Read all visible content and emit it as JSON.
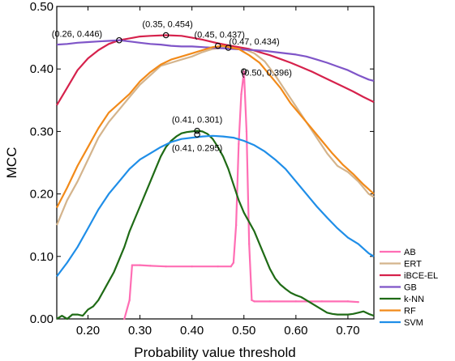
{
  "chart_data": {
    "type": "line",
    "xlabel": "Probability value threshold",
    "ylabel": "MCC",
    "xlim": [
      0.14,
      0.75
    ],
    "ylim": [
      0.0,
      0.5
    ],
    "xticks": [
      "0.20",
      "0.30",
      "0.40",
      "0.50",
      "0.60",
      "0.70"
    ],
    "yticks": [
      "0.00",
      "0.10",
      "0.20",
      "0.30",
      "0.40",
      "0.50"
    ],
    "legend_position": "bottom-right",
    "series": [
      {
        "name": "AB",
        "color": "#ff6eb4",
        "points": [
          [
            0.27,
            0.0
          ],
          [
            0.28,
            0.03
          ],
          [
            0.285,
            0.086
          ],
          [
            0.3,
            0.086
          ],
          [
            0.32,
            0.085
          ],
          [
            0.35,
            0.084
          ],
          [
            0.4,
            0.084
          ],
          [
            0.45,
            0.084
          ],
          [
            0.475,
            0.084
          ],
          [
            0.48,
            0.09
          ],
          [
            0.485,
            0.15
          ],
          [
            0.49,
            0.28
          ],
          [
            0.495,
            0.36
          ],
          [
            0.5,
            0.396
          ],
          [
            0.505,
            0.3
          ],
          [
            0.51,
            0.12
          ],
          [
            0.515,
            0.03
          ],
          [
            0.52,
            0.028
          ],
          [
            0.55,
            0.028
          ],
          [
            0.6,
            0.028
          ],
          [
            0.65,
            0.028
          ],
          [
            0.7,
            0.028
          ],
          [
            0.72,
            0.027
          ]
        ]
      },
      {
        "name": "ERT",
        "color": "#d4b48c",
        "points": [
          [
            0.14,
            0.15
          ],
          [
            0.16,
            0.19
          ],
          [
            0.18,
            0.22
          ],
          [
            0.2,
            0.255
          ],
          [
            0.22,
            0.29
          ],
          [
            0.24,
            0.315
          ],
          [
            0.26,
            0.335
          ],
          [
            0.28,
            0.355
          ],
          [
            0.3,
            0.375
          ],
          [
            0.32,
            0.39
          ],
          [
            0.34,
            0.405
          ],
          [
            0.36,
            0.41
          ],
          [
            0.38,
            0.415
          ],
          [
            0.4,
            0.42
          ],
          [
            0.42,
            0.427
          ],
          [
            0.44,
            0.432
          ],
          [
            0.46,
            0.434
          ],
          [
            0.48,
            0.435
          ],
          [
            0.5,
            0.432
          ],
          [
            0.52,
            0.425
          ],
          [
            0.54,
            0.412
          ],
          [
            0.56,
            0.39
          ],
          [
            0.58,
            0.365
          ],
          [
            0.6,
            0.34
          ],
          [
            0.62,
            0.315
          ],
          [
            0.64,
            0.29
          ],
          [
            0.66,
            0.265
          ],
          [
            0.68,
            0.245
          ],
          [
            0.7,
            0.235
          ],
          [
            0.72,
            0.22
          ],
          [
            0.74,
            0.2
          ],
          [
            0.75,
            0.195
          ]
        ]
      },
      {
        "name": "iBCE-EL",
        "color": "#d6224c",
        "points": [
          [
            0.14,
            0.342
          ],
          [
            0.16,
            0.37
          ],
          [
            0.18,
            0.398
          ],
          [
            0.2,
            0.417
          ],
          [
            0.22,
            0.43
          ],
          [
            0.24,
            0.44
          ],
          [
            0.26,
            0.446
          ],
          [
            0.28,
            0.449
          ],
          [
            0.3,
            0.452
          ],
          [
            0.32,
            0.453
          ],
          [
            0.35,
            0.454
          ],
          [
            0.38,
            0.453
          ],
          [
            0.4,
            0.45
          ],
          [
            0.42,
            0.447
          ],
          [
            0.45,
            0.441
          ],
          [
            0.47,
            0.438
          ],
          [
            0.49,
            0.435
          ],
          [
            0.51,
            0.432
          ],
          [
            0.53,
            0.427
          ],
          [
            0.55,
            0.422
          ],
          [
            0.57,
            0.416
          ],
          [
            0.59,
            0.41
          ],
          [
            0.61,
            0.403
          ],
          [
            0.63,
            0.396
          ],
          [
            0.65,
            0.388
          ],
          [
            0.67,
            0.38
          ],
          [
            0.69,
            0.372
          ],
          [
            0.71,
            0.364
          ],
          [
            0.73,
            0.355
          ],
          [
            0.75,
            0.347
          ]
        ]
      },
      {
        "name": "GB",
        "color": "#7f55c8",
        "points": [
          [
            0.14,
            0.439
          ],
          [
            0.16,
            0.44
          ],
          [
            0.18,
            0.442
          ],
          [
            0.2,
            0.443
          ],
          [
            0.22,
            0.444
          ],
          [
            0.24,
            0.445
          ],
          [
            0.26,
            0.446
          ],
          [
            0.28,
            0.444
          ],
          [
            0.3,
            0.442
          ],
          [
            0.32,
            0.44
          ],
          [
            0.34,
            0.439
          ],
          [
            0.36,
            0.437
          ],
          [
            0.38,
            0.436
          ],
          [
            0.4,
            0.436
          ],
          [
            0.42,
            0.435
          ],
          [
            0.44,
            0.434
          ],
          [
            0.46,
            0.433
          ],
          [
            0.48,
            0.432
          ],
          [
            0.5,
            0.431
          ],
          [
            0.52,
            0.43
          ],
          [
            0.54,
            0.429
          ],
          [
            0.56,
            0.427
          ],
          [
            0.58,
            0.425
          ],
          [
            0.6,
            0.423
          ],
          [
            0.62,
            0.42
          ],
          [
            0.64,
            0.415
          ],
          [
            0.66,
            0.41
          ],
          [
            0.68,
            0.404
          ],
          [
            0.7,
            0.398
          ],
          [
            0.72,
            0.39
          ],
          [
            0.74,
            0.383
          ],
          [
            0.75,
            0.381
          ]
        ]
      },
      {
        "name": "k-NN",
        "color": "#1f6b16",
        "points": [
          [
            0.14,
            0.0
          ],
          [
            0.15,
            0.005
          ],
          [
            0.16,
            0.0
          ],
          [
            0.17,
            0.007
          ],
          [
            0.18,
            0.007
          ],
          [
            0.19,
            0.005
          ],
          [
            0.2,
            0.015
          ],
          [
            0.21,
            0.02
          ],
          [
            0.22,
            0.03
          ],
          [
            0.23,
            0.045
          ],
          [
            0.24,
            0.06
          ],
          [
            0.25,
            0.075
          ],
          [
            0.26,
            0.095
          ],
          [
            0.27,
            0.115
          ],
          [
            0.28,
            0.14
          ],
          [
            0.29,
            0.16
          ],
          [
            0.3,
            0.18
          ],
          [
            0.31,
            0.2
          ],
          [
            0.32,
            0.22
          ],
          [
            0.33,
            0.24
          ],
          [
            0.34,
            0.26
          ],
          [
            0.35,
            0.275
          ],
          [
            0.36,
            0.285
          ],
          [
            0.37,
            0.292
          ],
          [
            0.38,
            0.297
          ],
          [
            0.39,
            0.299
          ],
          [
            0.4,
            0.3
          ],
          [
            0.41,
            0.301
          ],
          [
            0.42,
            0.3
          ],
          [
            0.43,
            0.296
          ],
          [
            0.44,
            0.288
          ],
          [
            0.45,
            0.275
          ],
          [
            0.46,
            0.26
          ],
          [
            0.47,
            0.24
          ],
          [
            0.48,
            0.215
          ],
          [
            0.49,
            0.19
          ],
          [
            0.5,
            0.17
          ],
          [
            0.51,
            0.155
          ],
          [
            0.52,
            0.14
          ],
          [
            0.53,
            0.12
          ],
          [
            0.54,
            0.1
          ],
          [
            0.55,
            0.08
          ],
          [
            0.56,
            0.065
          ],
          [
            0.57,
            0.055
          ],
          [
            0.58,
            0.048
          ],
          [
            0.59,
            0.042
          ],
          [
            0.6,
            0.038
          ],
          [
            0.61,
            0.035
          ],
          [
            0.62,
            0.03
          ],
          [
            0.63,
            0.025
          ],
          [
            0.64,
            0.02
          ],
          [
            0.65,
            0.015
          ],
          [
            0.66,
            0.01
          ],
          [
            0.67,
            0.008
          ],
          [
            0.68,
            0.007
          ],
          [
            0.69,
            0.007
          ],
          [
            0.7,
            0.007
          ],
          [
            0.71,
            0.008
          ],
          [
            0.72,
            0.01
          ],
          [
            0.73,
            0.012
          ],
          [
            0.74,
            0.008
          ],
          [
            0.75,
            0.005
          ]
        ]
      },
      {
        "name": "RF",
        "color": "#f28a19",
        "points": [
          [
            0.14,
            0.178
          ],
          [
            0.16,
            0.21
          ],
          [
            0.18,
            0.245
          ],
          [
            0.2,
            0.275
          ],
          [
            0.22,
            0.305
          ],
          [
            0.24,
            0.33
          ],
          [
            0.26,
            0.345
          ],
          [
            0.28,
            0.36
          ],
          [
            0.3,
            0.38
          ],
          [
            0.32,
            0.395
          ],
          [
            0.34,
            0.407
          ],
          [
            0.36,
            0.415
          ],
          [
            0.38,
            0.42
          ],
          [
            0.4,
            0.425
          ],
          [
            0.42,
            0.43
          ],
          [
            0.44,
            0.435
          ],
          [
            0.46,
            0.437
          ],
          [
            0.47,
            0.435
          ],
          [
            0.49,
            0.432
          ],
          [
            0.51,
            0.422
          ],
          [
            0.53,
            0.41
          ],
          [
            0.55,
            0.39
          ],
          [
            0.57,
            0.37
          ],
          [
            0.59,
            0.345
          ],
          [
            0.61,
            0.325
          ],
          [
            0.63,
            0.305
          ],
          [
            0.65,
            0.285
          ],
          [
            0.67,
            0.265
          ],
          [
            0.69,
            0.247
          ],
          [
            0.71,
            0.232
          ],
          [
            0.73,
            0.215
          ],
          [
            0.75,
            0.2
          ]
        ]
      },
      {
        "name": "SVM",
        "color": "#1f8ee8",
        "points": [
          [
            0.14,
            0.068
          ],
          [
            0.16,
            0.09
          ],
          [
            0.18,
            0.115
          ],
          [
            0.2,
            0.145
          ],
          [
            0.22,
            0.175
          ],
          [
            0.24,
            0.2
          ],
          [
            0.26,
            0.22
          ],
          [
            0.28,
            0.24
          ],
          [
            0.3,
            0.255
          ],
          [
            0.32,
            0.265
          ],
          [
            0.34,
            0.275
          ],
          [
            0.36,
            0.283
          ],
          [
            0.38,
            0.288
          ],
          [
            0.4,
            0.29
          ],
          [
            0.42,
            0.292
          ],
          [
            0.44,
            0.293
          ],
          [
            0.46,
            0.292
          ],
          [
            0.48,
            0.29
          ],
          [
            0.5,
            0.285
          ],
          [
            0.52,
            0.278
          ],
          [
            0.54,
            0.268
          ],
          [
            0.56,
            0.255
          ],
          [
            0.58,
            0.24
          ],
          [
            0.6,
            0.22
          ],
          [
            0.62,
            0.2
          ],
          [
            0.64,
            0.18
          ],
          [
            0.66,
            0.162
          ],
          [
            0.68,
            0.145
          ],
          [
            0.7,
            0.13
          ],
          [
            0.72,
            0.12
          ],
          [
            0.74,
            0.105
          ],
          [
            0.75,
            0.1
          ]
        ]
      }
    ],
    "annotations": [
      {
        "label": "(0.26, 0.446)",
        "x": 0.26,
        "y": 0.446
      },
      {
        "label": "(0.35, 0.454)",
        "x": 0.35,
        "y": 0.454
      },
      {
        "label": "(0.45, 0.437)",
        "x": 0.45,
        "y": 0.437
      },
      {
        "label": "(0.47, 0.434)",
        "x": 0.47,
        "y": 0.434
      },
      {
        "label": "(0.50, 0.396)",
        "x": 0.5,
        "y": 0.396
      },
      {
        "label": "(0.41, 0.301)",
        "x": 0.41,
        "y": 0.301
      },
      {
        "label": "(0.41, 0.295)",
        "x": 0.41,
        "y": 0.295
      }
    ]
  }
}
